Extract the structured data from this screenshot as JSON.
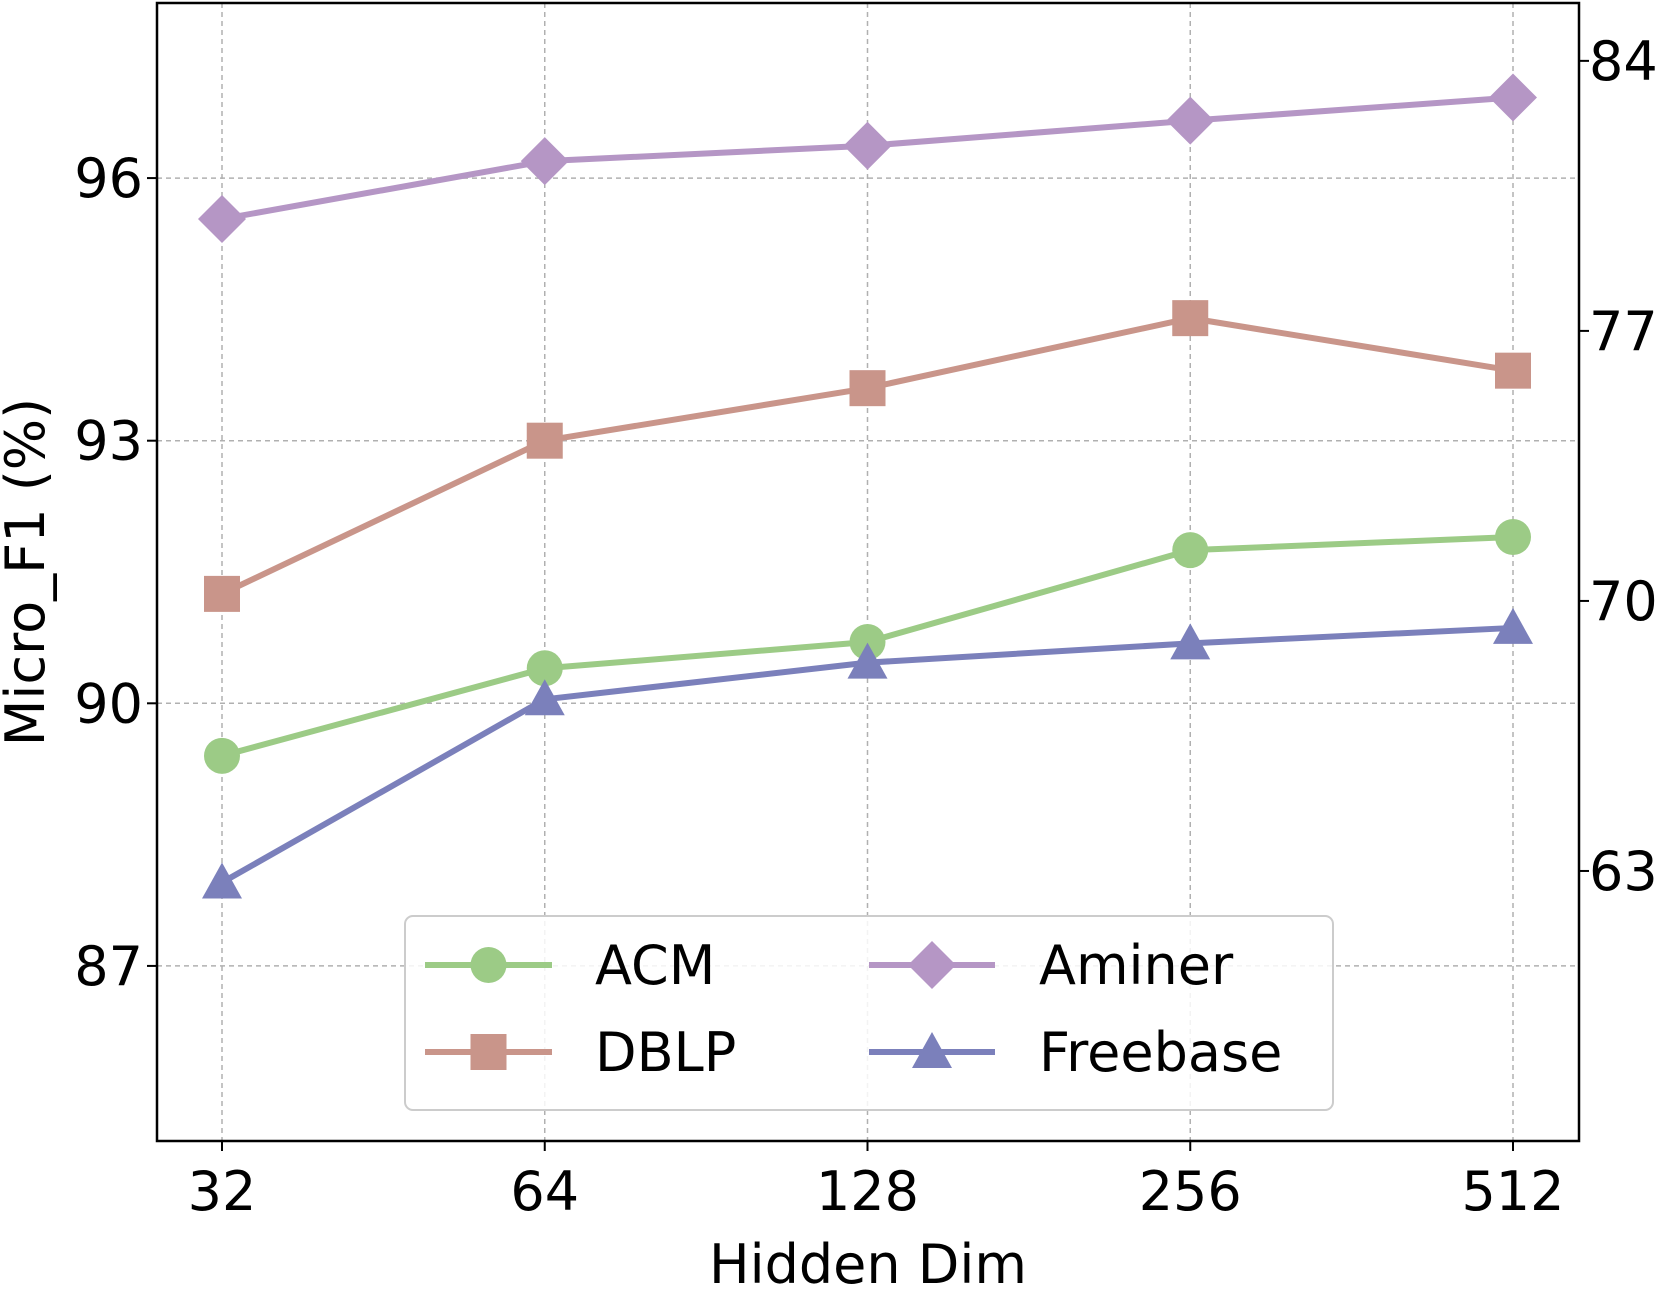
{
  "chart_data": {
    "type": "line",
    "categories": [
      "32",
      "64",
      "128",
      "256",
      "512"
    ],
    "xlabel": "Hidden Dim",
    "ylabel": "Micro_F1 (%)",
    "y_left": {
      "ylim": [
        85.0,
        98.0
      ],
      "ticks": [
        87,
        90,
        93,
        96
      ]
    },
    "y_right": {
      "ylim": [
        56.0,
        85.5
      ],
      "ticks": [
        63,
        70,
        77,
        84
      ]
    },
    "grid": true,
    "legend": {
      "placement": "lower-center",
      "columns": 2
    },
    "series": [
      {
        "name": "ACM",
        "axis": "left",
        "marker": "circle",
        "color": "#9ccb86",
        "values": [
          89.4,
          90.4,
          90.7,
          91.75,
          91.9
        ]
      },
      {
        "name": "DBLP",
        "axis": "left",
        "marker": "square",
        "color": "#c9958a",
        "values": [
          91.25,
          93.0,
          93.6,
          94.4,
          93.8
        ]
      },
      {
        "name": "Aminer",
        "axis": "right",
        "marker": "diamond",
        "color": "#b596c5",
        "values": [
          79.9,
          81.4,
          81.8,
          82.45,
          83.05
        ]
      },
      {
        "name": "Freebase",
        "axis": "right",
        "marker": "triangle",
        "color": "#7b80bb",
        "values": [
          62.7,
          67.45,
          68.4,
          68.9,
          69.3
        ]
      }
    ]
  }
}
